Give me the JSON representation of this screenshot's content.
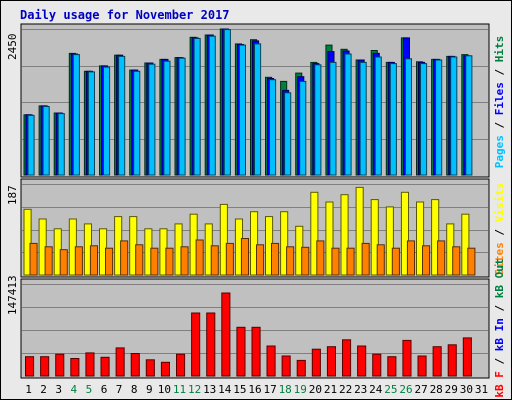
{
  "chart_data": {
    "type": "bar",
    "title": "Daily usage for November 2017",
    "colors": {
      "title": "#0000c0",
      "hits": "#008040",
      "files": "#0000ff",
      "pages": "#00c0ff",
      "visits": "#ffff00",
      "sites": "#ff8000",
      "kb_out": "#008040",
      "kb_in": "#0000ff",
      "kb_f": "#ff0000",
      "separator": "#000000",
      "weekend_day": "#008040",
      "weekday": "#000000",
      "panel_bg": "#c0c0c0",
      "frame_bg": "#e9e9e9"
    },
    "days": [
      "1",
      "2",
      "3",
      "4",
      "5",
      "6",
      "7",
      "8",
      "9",
      "10",
      "11",
      "12",
      "13",
      "14",
      "15",
      "16",
      "17",
      "18",
      "19",
      "20",
      "21",
      "22",
      "23",
      "24",
      "25",
      "26",
      "27",
      "28",
      "29",
      "30",
      "31"
    ],
    "weekend_days": [
      "4",
      "5",
      "11",
      "12",
      "18",
      "19",
      "25",
      "26"
    ],
    "top_panel": {
      "max_label": "2450",
      "ymax": 2450,
      "legend": [
        {
          "text": "Pages",
          "color": "#00c0ff"
        },
        {
          "text": " / ",
          "color": "#000000"
        },
        {
          "text": "Files",
          "color": "#0000ff"
        },
        {
          "text": " / ",
          "color": "#000000"
        },
        {
          "text": "Hits",
          "color": "#008040"
        }
      ],
      "series": [
        {
          "name": "Hits",
          "values": [
            1010,
            1160,
            1040,
            2040,
            1740,
            1830,
            2010,
            1760,
            1880,
            1940,
            1970,
            2310,
            2350,
            2450,
            2200,
            2270,
            1640,
            1570,
            1710,
            1890,
            2180,
            2110,
            1930,
            2090,
            1890,
            2300,
            1900,
            1940,
            1990,
            2020
          ]
        },
        {
          "name": "Files",
          "values": [
            1010,
            1160,
            1040,
            2030,
            1740,
            1830,
            2010,
            1760,
            1880,
            1940,
            1970,
            2300,
            2350,
            2450,
            2190,
            2250,
            1620,
            1420,
            1650,
            1870,
            2070,
            2080,
            1930,
            2040,
            1890,
            2300,
            1890,
            1940,
            1990,
            2000
          ]
        },
        {
          "name": "Pages",
          "values": [
            1000,
            1150,
            1030,
            2020,
            1730,
            1810,
            1990,
            1740,
            1860,
            1910,
            1960,
            2290,
            2330,
            2440,
            2180,
            2200,
            1600,
            1380,
            1570,
            1850,
            1890,
            2030,
            1890,
            1980,
            1870,
            1950,
            1870,
            1930,
            1980,
            2000
          ]
        }
      ]
    },
    "middle_panel": {
      "max_label": "187",
      "ymax": 187,
      "legend": [
        {
          "text": "Sites",
          "color": "#ff8000"
        },
        {
          "text": " / ",
          "color": "#000000"
        },
        {
          "text": "Visits",
          "color": "#ffff00"
        }
      ],
      "series": [
        {
          "name": "Visits",
          "values": [
            135,
            115,
            95,
            115,
            105,
            95,
            120,
            120,
            95,
            95,
            105,
            125,
            105,
            145,
            115,
            130,
            120,
            130,
            100,
            170,
            150,
            165,
            180,
            155,
            140,
            170,
            150,
            155,
            105,
            125
          ]
        },
        {
          "name": "Sites",
          "values": [
            65,
            58,
            52,
            58,
            60,
            55,
            70,
            62,
            55,
            55,
            58,
            72,
            60,
            65,
            75,
            62,
            65,
            58,
            57,
            70,
            55,
            55,
            65,
            62,
            55,
            70,
            60,
            70,
            58,
            55
          ]
        }
      ]
    },
    "bottom_panel": {
      "max_label": "147413",
      "ymax": 147413,
      "legend": [
        {
          "text": "kB F",
          "color": "#ff0000"
        },
        {
          "text": " / ",
          "color": "#000000"
        },
        {
          "text": "kB In",
          "color": "#0000ff"
        },
        {
          "text": " / ",
          "color": "#000000"
        },
        {
          "text": "kB Out",
          "color": "#008040"
        }
      ],
      "series": [
        {
          "name": "kB F",
          "values": [
            31000,
            31000,
            35000,
            28000,
            37000,
            30000,
            45000,
            36000,
            26000,
            22000,
            35000,
            101000,
            101000,
            133000,
            78000,
            78000,
            48000,
            32000,
            25000,
            43000,
            47000,
            58000,
            48000,
            35000,
            31000,
            57000,
            32000,
            47000,
            50000,
            61000
          ]
        }
      ]
    }
  }
}
